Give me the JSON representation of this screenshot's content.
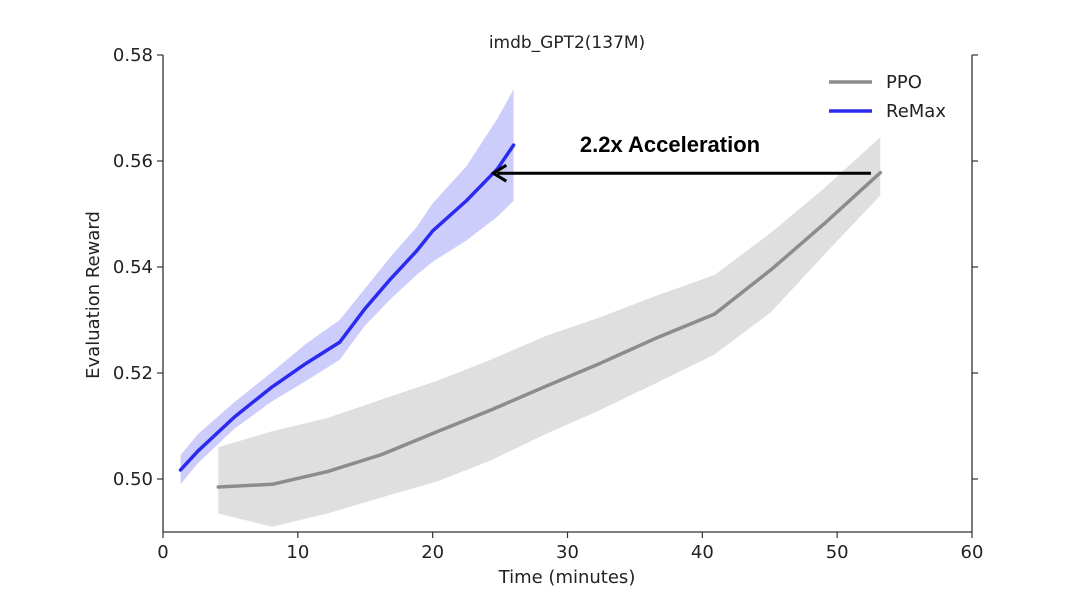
{
  "chart_data": {
    "type": "line",
    "title": "imdb_GPT2(137M)",
    "xlabel": "Time (minutes)",
    "ylabel": "Evaluation Reward",
    "xlim": [
      0,
      60
    ],
    "ylim": [
      0.49,
      0.58
    ],
    "xticks": [
      0,
      10,
      20,
      30,
      40,
      50,
      60
    ],
    "yticks": [
      0.5,
      0.52,
      0.54,
      0.56,
      0.58
    ],
    "xtick_labels": [
      "0",
      "10",
      "20",
      "30",
      "40",
      "50",
      "60"
    ],
    "ytick_labels": [
      "0.50",
      "0.52",
      "0.54",
      "0.56",
      "0.58"
    ],
    "legend_position": "top-right",
    "series": [
      {
        "name": "PPO",
        "color": "#8c8c8c",
        "band_color": "#d9d9d9",
        "x": [
          4.1,
          8.1,
          12.2,
          16.2,
          20.3,
          24.3,
          28.4,
          32.4,
          36.5,
          40.9,
          45.1,
          49.1,
          53.2
        ],
        "y": [
          0.4985,
          0.499,
          0.5014,
          0.5046,
          0.5089,
          0.513,
          0.5175,
          0.5218,
          0.5265,
          0.5311,
          0.5395,
          0.5483,
          0.5578
        ],
        "lower": [
          0.4935,
          0.491,
          0.4935,
          0.4965,
          0.4995,
          0.5035,
          0.5085,
          0.513,
          0.518,
          0.5235,
          0.5315,
          0.5425,
          0.5535
        ],
        "upper": [
          0.506,
          0.509,
          0.5115,
          0.515,
          0.5185,
          0.5225,
          0.527,
          0.5305,
          0.5345,
          0.5385,
          0.5465,
          0.555,
          0.5645
        ]
      },
      {
        "name": "ReMax",
        "color": "#2b2bf0",
        "band_color": "#c4c4fb",
        "x": [
          1.3,
          2.6,
          5.3,
          8.0,
          10.6,
          13.1,
          15.0,
          16.9,
          18.8,
          20.0,
          22.5,
          24.8,
          26.0
        ],
        "y": [
          0.5017,
          0.5053,
          0.5117,
          0.5172,
          0.5218,
          0.5258,
          0.5322,
          0.5378,
          0.543,
          0.5468,
          0.5525,
          0.5585,
          0.563
        ],
        "lower": [
          0.499,
          0.503,
          0.5095,
          0.5145,
          0.5185,
          0.5225,
          0.529,
          0.534,
          0.5385,
          0.541,
          0.545,
          0.5495,
          0.5525
        ],
        "upper": [
          0.5045,
          0.5085,
          0.5145,
          0.52,
          0.5255,
          0.53,
          0.536,
          0.542,
          0.5475,
          0.552,
          0.559,
          0.568,
          0.5735
        ]
      }
    ],
    "annotations": [
      {
        "text": "2.2x Acceleration",
        "arrow_from": [
          52.5,
          0.5577
        ],
        "arrow_to": [
          24.5,
          0.5577
        ]
      }
    ]
  }
}
